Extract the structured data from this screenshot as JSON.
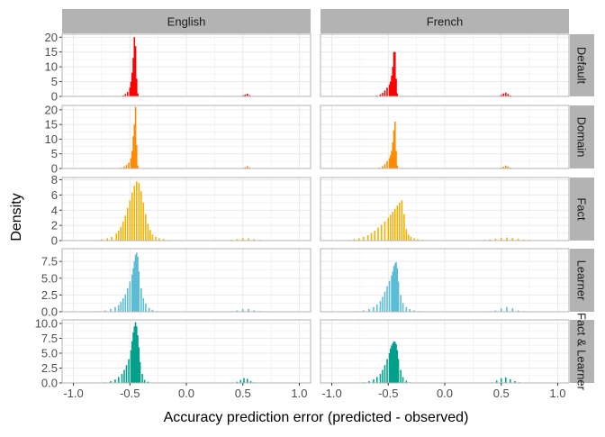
{
  "chart_data": {
    "type": "histogram",
    "xlabel": "Accuracy prediction error (predicted - observed)",
    "ylabel": "Density",
    "xlim": [
      -1.1,
      1.1
    ],
    "x_ticks": [
      "-1.0",
      "-0.5",
      "0.0",
      "0.5",
      "1.0"
    ],
    "x_tick_values": [
      -1.0,
      -0.5,
      0.0,
      0.5,
      1.0
    ],
    "columns": [
      "English",
      "French"
    ],
    "grid": true,
    "colors": {
      "Default": "#ff0000",
      "Domain": "#ff8c00",
      "Fact": "#f5b000",
      "Learner": "#5bbcd6",
      "Fact & Learner": "#00a08a",
      "strip_bg": "#b3b3b3",
      "panel_border": "#b3b3b3",
      "grid": "#ebebeb"
    },
    "rows": [
      {
        "name": "Default",
        "ylim": [
          0,
          21
        ],
        "y_ticks": [
          "0",
          "5",
          "10",
          "15",
          "20"
        ],
        "y_tick_values": [
          0,
          5,
          10,
          15,
          20
        ],
        "panels": {
          "English": {
            "peak": {
              "x": [
                -0.56,
                -0.54,
                -0.52,
                -0.5,
                -0.49,
                -0.48,
                -0.47,
                -0.46,
                -0.45,
                -0.44,
                -0.43
              ],
              "y": [
                0.3,
                0.8,
                1.5,
                3,
                5,
                8,
                13,
                20,
                17,
                6,
                1
              ]
            },
            "tail": {
              "x": [
                0.5,
                0.52,
                0.54,
                0.56
              ],
              "y": [
                0.3,
                0.6,
                0.9,
                0.4
              ]
            }
          },
          "French": {
            "peak": {
              "x": [
                -0.6,
                -0.57,
                -0.55,
                -0.53,
                -0.51,
                -0.49,
                -0.48,
                -0.47,
                -0.46,
                -0.45,
                -0.44,
                -0.43,
                -0.42
              ],
              "y": [
                0.3,
                0.7,
                1.2,
                2,
                3,
                4,
                5,
                7,
                10,
                15,
                15,
                6,
                1
              ]
            },
            "tail": {
              "x": [
                0.48,
                0.5,
                0.52,
                0.54,
                0.56,
                0.58
              ],
              "y": [
                0.2,
                0.5,
                1,
                1.3,
                0.8,
                0.3
              ]
            }
          }
        }
      },
      {
        "name": "Domain",
        "ylim": [
          0,
          21.5
        ],
        "y_ticks": [
          "0",
          "5",
          "10",
          "15",
          "20"
        ],
        "y_tick_values": [
          0,
          5,
          10,
          15,
          20
        ],
        "panels": {
          "English": {
            "peak": {
              "x": [
                -0.58,
                -0.55,
                -0.53,
                -0.51,
                -0.49,
                -0.48,
                -0.47,
                -0.46,
                -0.45,
                -0.44,
                -0.43
              ],
              "y": [
                0.3,
                0.7,
                1.2,
                2,
                3.5,
                6,
                11,
                15,
                21,
                8,
                1
              ]
            },
            "tail": {
              "x": [
                0.52,
                0.54,
                0.56
              ],
              "y": [
                0.4,
                0.8,
                0.4
              ]
            }
          },
          "French": {
            "peak": {
              "x": [
                -0.58,
                -0.55,
                -0.53,
                -0.51,
                -0.49,
                -0.48,
                -0.47,
                -0.46,
                -0.45,
                -0.44,
                -0.43,
                -0.42
              ],
              "y": [
                0.3,
                0.8,
                1.5,
                2.5,
                3.5,
                4.5,
                6,
                9,
                13,
                16,
                6,
                1
              ]
            },
            "tail": {
              "x": [
                0.5,
                0.52,
                0.54,
                0.56,
                0.58
              ],
              "y": [
                0.3,
                0.6,
                1,
                0.7,
                0.3
              ]
            }
          }
        }
      },
      {
        "name": "Fact",
        "ylim": [
          0,
          8.3
        ],
        "y_ticks": [
          "0",
          "2",
          "4",
          "6",
          "8"
        ],
        "y_tick_values": [
          0,
          2,
          4,
          6,
          8
        ],
        "panels": {
          "English": {
            "peak": {
              "x": [
                -0.85,
                -0.8,
                -0.75,
                -0.7,
                -0.66,
                -0.62,
                -0.6,
                -0.58,
                -0.56,
                -0.54,
                -0.52,
                -0.5,
                -0.48,
                -0.46,
                -0.44,
                -0.42,
                -0.4,
                -0.38,
                -0.36,
                -0.34,
                -0.32,
                -0.3,
                -0.27,
                -0.24,
                -0.2,
                -0.16
              ],
              "y": [
                0.05,
                0.1,
                0.15,
                0.3,
                0.5,
                0.9,
                1.3,
                1.8,
                2.5,
                3.3,
                4.3,
                5.3,
                6.3,
                7.2,
                7.8,
                7.6,
                6.5,
                5,
                3.5,
                2.2,
                1.4,
                0.8,
                0.5,
                0.3,
                0.2,
                0.1
              ]
            },
            "tail": {
              "x": [
                0.35,
                0.4,
                0.45,
                0.5,
                0.55,
                0.6,
                0.65,
                0.7
              ],
              "y": [
                0.05,
                0.1,
                0.2,
                0.3,
                0.3,
                0.2,
                0.1,
                0.05
              ]
            }
          },
          "French": {
            "peak": {
              "x": [
                -0.9,
                -0.85,
                -0.8,
                -0.76,
                -0.72,
                -0.68,
                -0.65,
                -0.62,
                -0.59,
                -0.56,
                -0.53,
                -0.5,
                -0.48,
                -0.46,
                -0.44,
                -0.42,
                -0.4,
                -0.38,
                -0.36,
                -0.34,
                -0.32,
                -0.3,
                -0.27,
                -0.24,
                -0.2
              ],
              "y": [
                0.05,
                0.1,
                0.2,
                0.3,
                0.5,
                0.7,
                1,
                1.3,
                1.7,
                2.1,
                2.5,
                3,
                3.4,
                3.8,
                4.2,
                4.6,
                5,
                5.3,
                3.5,
                1.5,
                0.8,
                0.5,
                0.3,
                0.2,
                0.1
              ]
            },
            "tail": {
              "x": [
                0.3,
                0.35,
                0.4,
                0.45,
                0.5,
                0.55,
                0.6,
                0.65,
                0.7,
                0.75,
                0.8,
                0.85
              ],
              "y": [
                0.05,
                0.1,
                0.15,
                0.25,
                0.35,
                0.4,
                0.35,
                0.25,
                0.15,
                0.1,
                0.05,
                0.05
              ]
            }
          }
        }
      },
      {
        "name": "Learner",
        "ylim": [
          0,
          9.4
        ],
        "y_ticks": [
          "0.0",
          "2.5",
          "5.0",
          "7.5"
        ],
        "y_tick_values": [
          0,
          2.5,
          5,
          7.5
        ],
        "panels": {
          "English": {
            "peak": {
              "x": [
                -0.78,
                -0.72,
                -0.67,
                -0.63,
                -0.6,
                -0.58,
                -0.56,
                -0.54,
                -0.52,
                -0.5,
                -0.48,
                -0.47,
                -0.46,
                -0.45,
                -0.44,
                -0.43,
                -0.42,
                -0.4,
                -0.38,
                -0.36,
                -0.33,
                -0.3,
                -0.26
              ],
              "y": [
                0.1,
                0.2,
                0.4,
                0.7,
                1,
                1.5,
                2,
                2.6,
                3.5,
                4.5,
                5.5,
                6.5,
                7.5,
                8.5,
                8.8,
                8.2,
                6,
                3.5,
                2,
                1.2,
                0.6,
                0.3,
                0.1
              ]
            },
            "tail": {
              "x": [
                0.4,
                0.45,
                0.5,
                0.55,
                0.6,
                0.65
              ],
              "y": [
                0.1,
                0.2,
                0.4,
                0.4,
                0.2,
                0.1
              ]
            }
          },
          "French": {
            "peak": {
              "x": [
                -0.78,
                -0.72,
                -0.67,
                -0.63,
                -0.6,
                -0.57,
                -0.55,
                -0.53,
                -0.51,
                -0.49,
                -0.47,
                -0.46,
                -0.45,
                -0.44,
                -0.43,
                -0.42,
                -0.41,
                -0.39,
                -0.37,
                -0.34,
                -0.31,
                -0.27,
                -0.23
              ],
              "y": [
                0.1,
                0.2,
                0.4,
                0.7,
                1.1,
                1.6,
                2.2,
                3,
                3.8,
                4.6,
                5.4,
                6,
                6.8,
                7.2,
                7.4,
                6.5,
                4.5,
                2.5,
                1.3,
                0.7,
                0.4,
                0.2,
                0.1
              ]
            },
            "tail": {
              "x": [
                0.4,
                0.45,
                0.5,
                0.55,
                0.6,
                0.65,
                0.7
              ],
              "y": [
                0.1,
                0.2,
                0.5,
                0.7,
                0.5,
                0.2,
                0.1
              ]
            }
          }
        }
      },
      {
        "name": "Fact & Learner",
        "ylim": [
          0,
          10.6
        ],
        "y_ticks": [
          "0.0",
          "2.5",
          "5.0",
          "7.5",
          "10.0"
        ],
        "y_tick_values": [
          0,
          2.5,
          5,
          7.5,
          10
        ],
        "panels": {
          "English": {
            "peak": {
              "x": [
                -0.72,
                -0.67,
                -0.63,
                -0.6,
                -0.57,
                -0.55,
                -0.53,
                -0.51,
                -0.49,
                -0.48,
                -0.47,
                -0.46,
                -0.45,
                -0.44,
                -0.43,
                -0.42,
                -0.41,
                -0.39,
                -0.37,
                -0.34
              ],
              "y": [
                0.1,
                0.3,
                0.6,
                1,
                1.5,
                2.2,
                3,
                4,
                5.5,
                7,
                8.5,
                9.5,
                10.2,
                9.5,
                8,
                6,
                3.5,
                1.5,
                0.5,
                0.2
              ]
            },
            "tail": {
              "x": [
                0.45,
                0.48,
                0.51,
                0.54,
                0.57,
                0.6
              ],
              "y": [
                0.2,
                0.5,
                0.8,
                0.7,
                0.3,
                0.1
              ]
            }
          },
          "French": {
            "peak": {
              "x": [
                -0.72,
                -0.67,
                -0.63,
                -0.6,
                -0.57,
                -0.55,
                -0.53,
                -0.51,
                -0.49,
                -0.48,
                -0.47,
                -0.46,
                -0.45,
                -0.44,
                -0.43,
                -0.42,
                -0.41,
                -0.39,
                -0.37,
                -0.34,
                -0.31
              ],
              "y": [
                0.1,
                0.3,
                0.6,
                1,
                1.5,
                2.2,
                3,
                4,
                5,
                5.8,
                6.3,
                6.7,
                7,
                6.9,
                6.5,
                5.5,
                4,
                2.2,
                1,
                0.4,
                0.1
              ]
            },
            "tail": {
              "x": [
                0.42,
                0.46,
                0.5,
                0.54,
                0.58,
                0.62,
                0.66
              ],
              "y": [
                0.1,
                0.4,
                0.8,
                0.9,
                0.6,
                0.3,
                0.1
              ]
            }
          }
        }
      }
    ]
  }
}
